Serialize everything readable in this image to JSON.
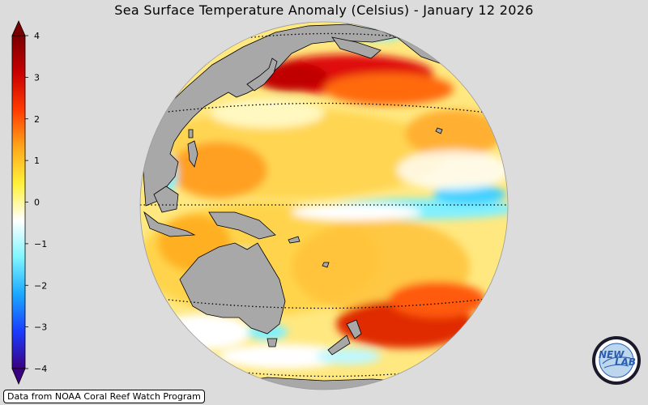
{
  "title": "Sea Surface Temperature Anomaly (Celsius) - January 12 2026",
  "colorbar": {
    "min": -4,
    "max": 4,
    "ticks": [
      "4",
      "3",
      "2",
      "1",
      "0",
      "−1",
      "−2",
      "−3",
      "−4"
    ],
    "colors": [
      "#3a0080",
      "#1a3cff",
      "#1aa8ff",
      "#7ff5ff",
      "#ffffff",
      "#fff13a",
      "#ffa61a",
      "#ff3a00",
      "#c80000",
      "#7a0000"
    ]
  },
  "map": {
    "land_color": "#a8a8a8",
    "background_color": "#dcdcdc"
  },
  "credit": "Data from NOAA Coral Reef Watch Program",
  "logo": {
    "text_left": "NEW",
    "text_right": "LAB"
  }
}
